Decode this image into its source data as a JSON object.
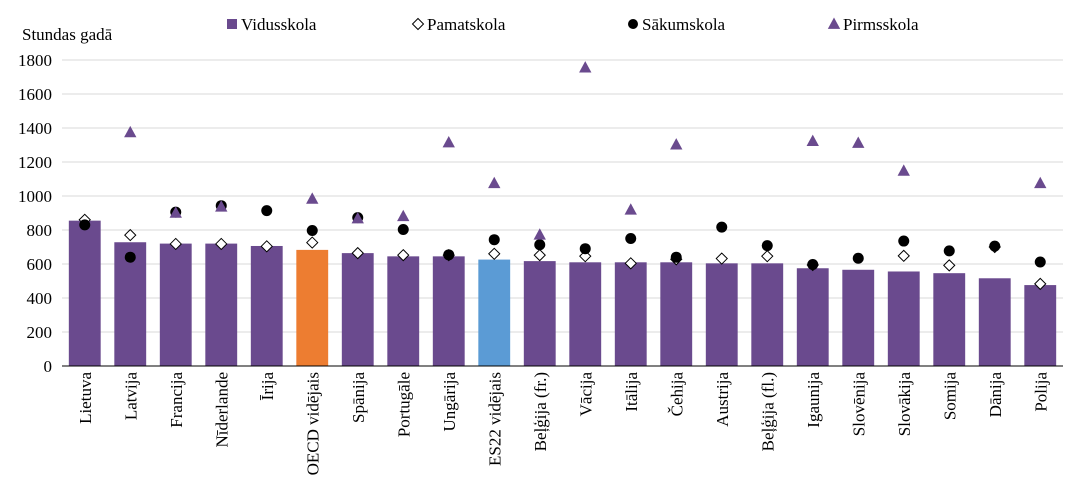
{
  "chart_data": {
    "type": "bar",
    "ylabel": "Stundas gadā",
    "ylim": [
      0,
      1800
    ],
    "yticks": [
      0,
      200,
      400,
      600,
      800,
      1000,
      1200,
      1400,
      1600,
      1800
    ],
    "grid": true,
    "legend_position": "top",
    "categories": [
      "Lietuva",
      "Latvija",
      "Francija",
      "Nīderlande",
      "Īrija",
      "OECD vidējais",
      "Spānija",
      "Portugāle",
      "Ungārija",
      "ES22 vidējais",
      "Beļģija (fr.)",
      "Vācija",
      "Itālija",
      "Čehija",
      "Austrija",
      "Beļģija (fl.)",
      "Igaunija",
      "Slovēnija",
      "Slovākija",
      "Somija",
      "Dānija",
      "Polija"
    ],
    "highlight_colors": {
      "OECD vidējais": "#ED7D31",
      "ES22 vidējais": "#5B9BD5"
    },
    "series": [
      {
        "name": "Vidusskola",
        "type": "bar",
        "color": "#6A4A8E",
        "values": [
          855,
          728,
          720,
          720,
          706,
          683,
          664,
          645,
          645,
          626,
          617,
          610,
          610,
          610,
          604,
          604,
          575,
          566,
          556,
          546,
          516,
          476
        ]
      },
      {
        "name": "Pamatskola",
        "type": "marker",
        "marker": "diamond",
        "color": "#ffffff",
        "values": [
          860,
          770,
          718,
          718,
          704,
          726,
          664,
          652,
          652,
          660,
          652,
          646,
          604,
          628,
          632,
          646,
          594,
          null,
          648,
          592,
          700,
          483
        ]
      },
      {
        "name": "Sākumskola",
        "type": "marker",
        "marker": "circle",
        "color": "#000000",
        "values": [
          830,
          640,
          905,
          943,
          914,
          797,
          873,
          803,
          654,
          743,
          713,
          690,
          750,
          640,
          817,
          708,
          597,
          634,
          735,
          677,
          705,
          612
        ]
      },
      {
        "name": "Pirmsskola",
        "type": "marker",
        "marker": "triangle",
        "color": "#6A4A8E",
        "values": [
          null,
          1374,
          901,
          937,
          null,
          983,
          868,
          881,
          1315,
          1075,
          772,
          1755,
          919,
          1302,
          null,
          null,
          1323,
          1312,
          1148,
          null,
          null,
          1075
        ]
      }
    ]
  }
}
